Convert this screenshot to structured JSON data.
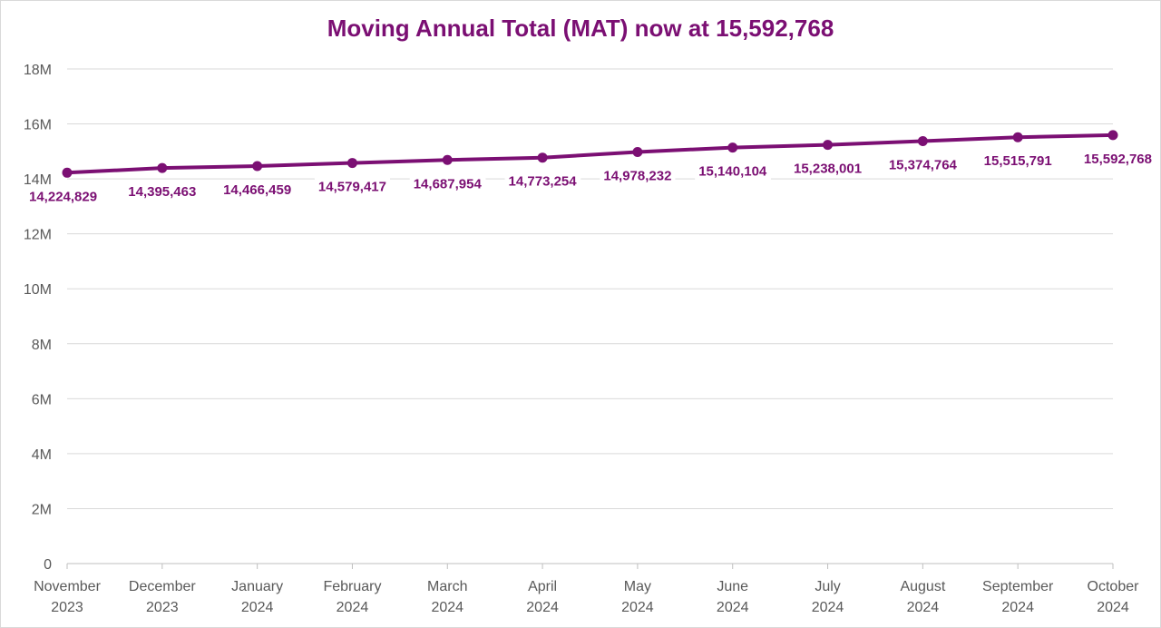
{
  "colors": {
    "series": "#7b0f73",
    "title": "#7b0f73",
    "grid": "#d9d9d9",
    "axis_text": "#595959"
  },
  "chart_data": {
    "type": "line",
    "title": "Moving Annual Total (MAT) now at 15,592,768",
    "xlabel": "",
    "ylabel": "",
    "ylim": [
      0,
      18000000
    ],
    "yticks": [
      0,
      2000000,
      4000000,
      6000000,
      8000000,
      10000000,
      12000000,
      14000000,
      16000000,
      18000000
    ],
    "ytick_labels": [
      "0",
      "2M",
      "4M",
      "6M",
      "8M",
      "10M",
      "12M",
      "14M",
      "16M",
      "18M"
    ],
    "grid": true,
    "legend": "none",
    "categories": [
      [
        "November",
        "2023"
      ],
      [
        "December",
        "2023"
      ],
      [
        "January",
        "2024"
      ],
      [
        "February",
        "2024"
      ],
      [
        "March",
        "2024"
      ],
      [
        "April",
        "2024"
      ],
      [
        "May",
        "2024"
      ],
      [
        "June",
        "2024"
      ],
      [
        "July",
        "2024"
      ],
      [
        "August",
        "2024"
      ],
      [
        "September",
        "2024"
      ],
      [
        "October",
        "2024"
      ]
    ],
    "series": [
      {
        "values": [
          14224829,
          14395463,
          14466459,
          14579417,
          14687954,
          14773254,
          14978232,
          15140104,
          15238001,
          15374764,
          15515791,
          15592768
        ],
        "data_labels": [
          "14,224,829",
          "14,395,463",
          "14,466,459",
          "14,579,417",
          "14,687,954",
          "14,773,254",
          "14,978,232",
          "15,140,104",
          "15,238,001",
          "15,374,764",
          "15,515,791",
          "15,592,768"
        ]
      }
    ]
  }
}
